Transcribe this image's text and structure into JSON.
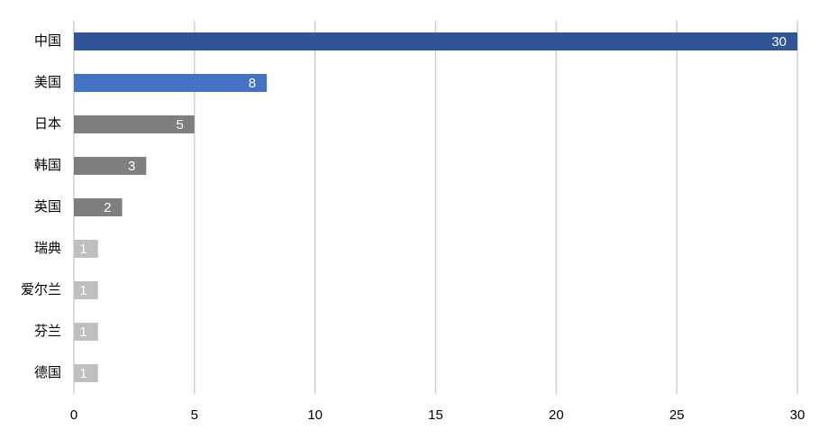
{
  "chart_data": {
    "type": "hbar",
    "categories": [
      "中国",
      "美国",
      "日本",
      "韩国",
      "英国",
      "瑞典",
      "爱尔兰",
      "芬兰",
      "德国"
    ],
    "values": [
      30,
      8,
      5,
      3,
      2,
      1,
      1,
      1,
      1
    ],
    "colors": [
      "#2f5597",
      "#4472c4",
      "#7f7f7f",
      "#7f7f7f",
      "#7f7f7f",
      "#bfbfbf",
      "#bfbfbf",
      "#bfbfbf",
      "#bfbfbf"
    ],
    "xlim": [
      0,
      30
    ],
    "xticks": [
      0,
      5,
      10,
      15,
      20,
      25,
      30
    ],
    "grid": true
  }
}
